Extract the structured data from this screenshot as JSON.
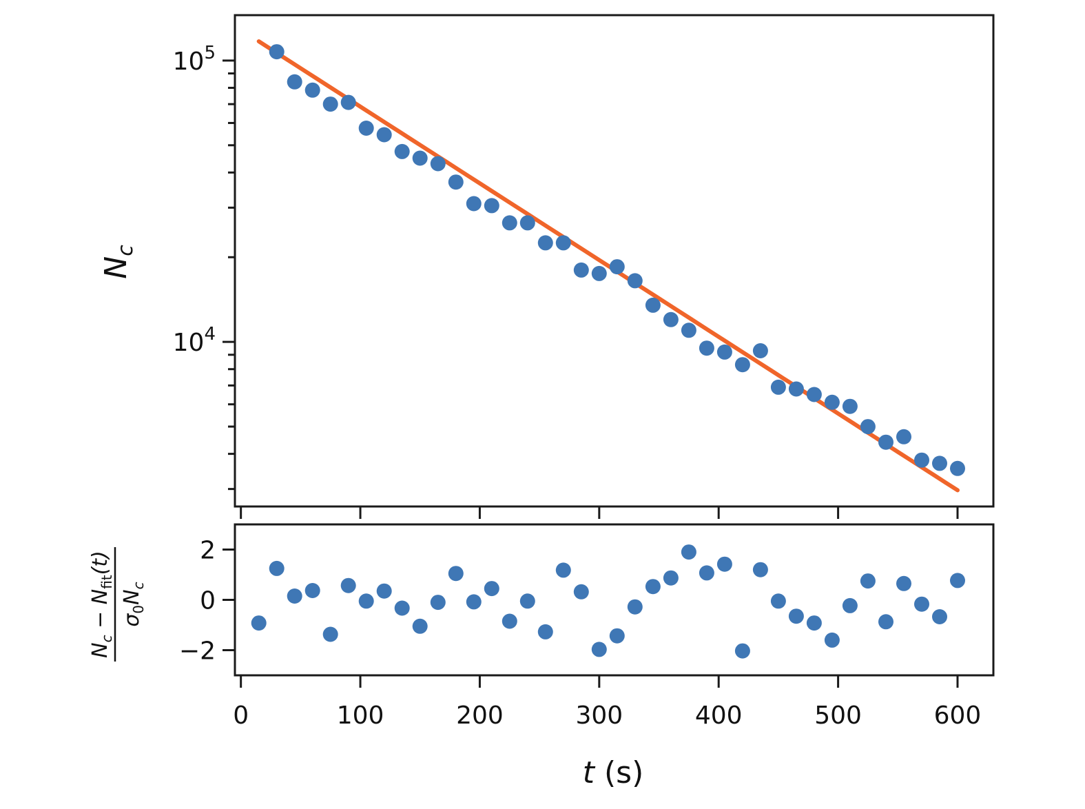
{
  "chart_data": [
    {
      "type": "scatter",
      "panel": "top",
      "yscale": "log",
      "xlim": [
        -5,
        630
      ],
      "ylim": [
        2600,
        145000
      ],
      "xlabel": "",
      "ylabel": "N",
      "ylabel_sub": "c",
      "ytick_labels": [
        {
          "value": 100000,
          "base": "10",
          "exp": "5"
        },
        {
          "value": 10000,
          "base": "10",
          "exp": "4"
        }
      ],
      "colors": {
        "points": "#3f77b5",
        "fit": "#f0652a"
      },
      "fit": {
        "t0": 15,
        "n0": 117000,
        "rate": 0.00628,
        "x_range": [
          15,
          600
        ]
      },
      "series": [
        {
          "x": [
            30,
            45,
            60,
            75,
            90,
            105,
            120,
            135,
            150,
            165,
            180,
            195,
            210,
            225,
            240,
            255,
            270,
            285,
            300,
            315,
            330,
            345,
            360,
            375,
            390,
            405,
            420,
            435,
            450,
            465,
            480,
            495,
            510,
            525,
            540,
            555,
            570,
            585,
            600
          ],
          "y": [
            107500,
            84000,
            78500,
            70000,
            71000,
            57500,
            54500,
            47500,
            45000,
            43000,
            37000,
            31000,
            30500,
            26500,
            26500,
            22500,
            22500,
            18000,
            17500,
            18500,
            16500,
            13500,
            12000,
            11000,
            9500,
            9200,
            8300,
            9300,
            6900,
            6800,
            6500,
            6100,
            5900,
            5000,
            4400,
            4600,
            3800,
            3700,
            3550
          ]
        }
      ]
    },
    {
      "type": "scatter",
      "panel": "bottom",
      "xlim": [
        -5,
        630
      ],
      "ylim": [
        -3,
        3
      ],
      "yticks": [
        2,
        0,
        -2
      ],
      "ytick_labels": [
        "2",
        "0",
        "−2"
      ],
      "xticks": [
        0,
        100,
        200,
        300,
        400,
        500,
        600
      ],
      "xtick_labels": [
        "0",
        "100",
        "200",
        "300",
        "400",
        "500",
        "600"
      ],
      "xlabel": "t",
      "xlabel_unit": " (s)",
      "ylabel_numerator": "N",
      "ylabel_numerator_sub": "c",
      "ylabel_numerator_minus": " − ",
      "ylabel_numerator_fit": "N",
      "ylabel_numerator_fit_sub": "fit",
      "ylabel_numerator_fit_arg": "(t)",
      "ylabel_denominator_sigma": "σ",
      "ylabel_denominator_sigma_sub": "0",
      "ylabel_denominator_n": "N",
      "ylabel_denominator_n_sub": "c",
      "colors": {
        "points": "#3f77b5"
      },
      "series": [
        {
          "x": [
            15,
            30,
            45,
            60,
            75,
            90,
            105,
            120,
            135,
            150,
            165,
            180,
            195,
            210,
            225,
            240,
            255,
            270,
            285,
            300,
            315,
            330,
            345,
            360,
            375,
            390,
            405,
            420,
            435,
            450,
            465,
            480,
            495,
            510,
            525,
            540,
            555,
            570,
            585,
            600
          ],
          "y": [
            -0.92,
            1.25,
            0.15,
            0.37,
            -1.37,
            0.57,
            -0.05,
            0.35,
            -0.33,
            -1.05,
            -0.1,
            1.05,
            -0.08,
            0.45,
            -0.85,
            -0.05,
            -1.27,
            1.18,
            0.32,
            -1.97,
            -1.43,
            -0.28,
            0.53,
            0.87,
            1.9,
            1.07,
            1.42,
            -2.03,
            1.2,
            -0.05,
            -0.65,
            -0.92,
            -1.6,
            -0.23,
            0.75,
            -0.87,
            0.65,
            -0.17,
            -0.67,
            0.77
          ]
        }
      ]
    }
  ]
}
